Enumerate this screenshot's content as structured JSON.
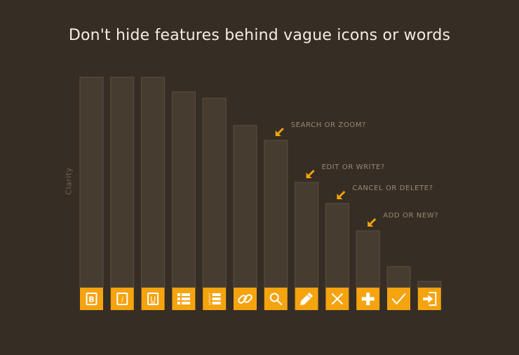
{
  "chart_data": {
    "type": "bar",
    "title": "Don't hide features behind vague icons or words",
    "ylabel": "Clarity",
    "xlabel": "",
    "ylim": [
      0,
      100
    ],
    "grid": false,
    "categories": [
      "bold-icon",
      "italic-icon",
      "underline-icon",
      "bullet-list-icon",
      "numbered-list-icon",
      "link-icon",
      "search-icon",
      "pencil-icon",
      "x-icon",
      "plus-icon",
      "checkmark-icon",
      "login-icon"
    ],
    "values": [
      100,
      100,
      100,
      93,
      90,
      77,
      70,
      50,
      40,
      27,
      10,
      3
    ],
    "annotations": [
      {
        "category_index": 6,
        "text": "SEARCH OR ZOOM?"
      },
      {
        "category_index": 7,
        "text": "EDIT OR WRITE?"
      },
      {
        "category_index": 8,
        "text": "CANCEL OR DELETE?"
      },
      {
        "category_index": 9,
        "text": "ADD OR NEW?"
      }
    ],
    "colors": {
      "bar": "#463c2f",
      "tile": "#f5a30f",
      "background": "#362e24"
    }
  }
}
